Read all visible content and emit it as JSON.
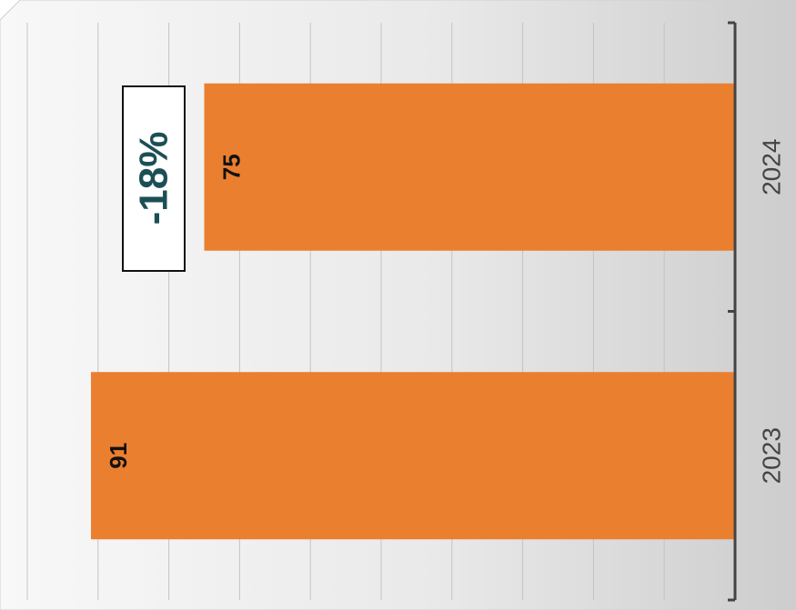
{
  "chart_data": {
    "type": "bar",
    "orientation": "horizontal",
    "rotated": "90deg-clockwise",
    "categories": [
      "2023",
      "2024"
    ],
    "values": [
      91,
      75
    ],
    "data_labels": [
      "91",
      "75"
    ],
    "xlim": [
      0,
      100
    ],
    "grid": true,
    "bar_color": "#ea7f2f",
    "title": "",
    "xlabel": "",
    "ylabel": ""
  },
  "annotation": {
    "change_label": "-18%",
    "text_color": "#1c4f55"
  }
}
